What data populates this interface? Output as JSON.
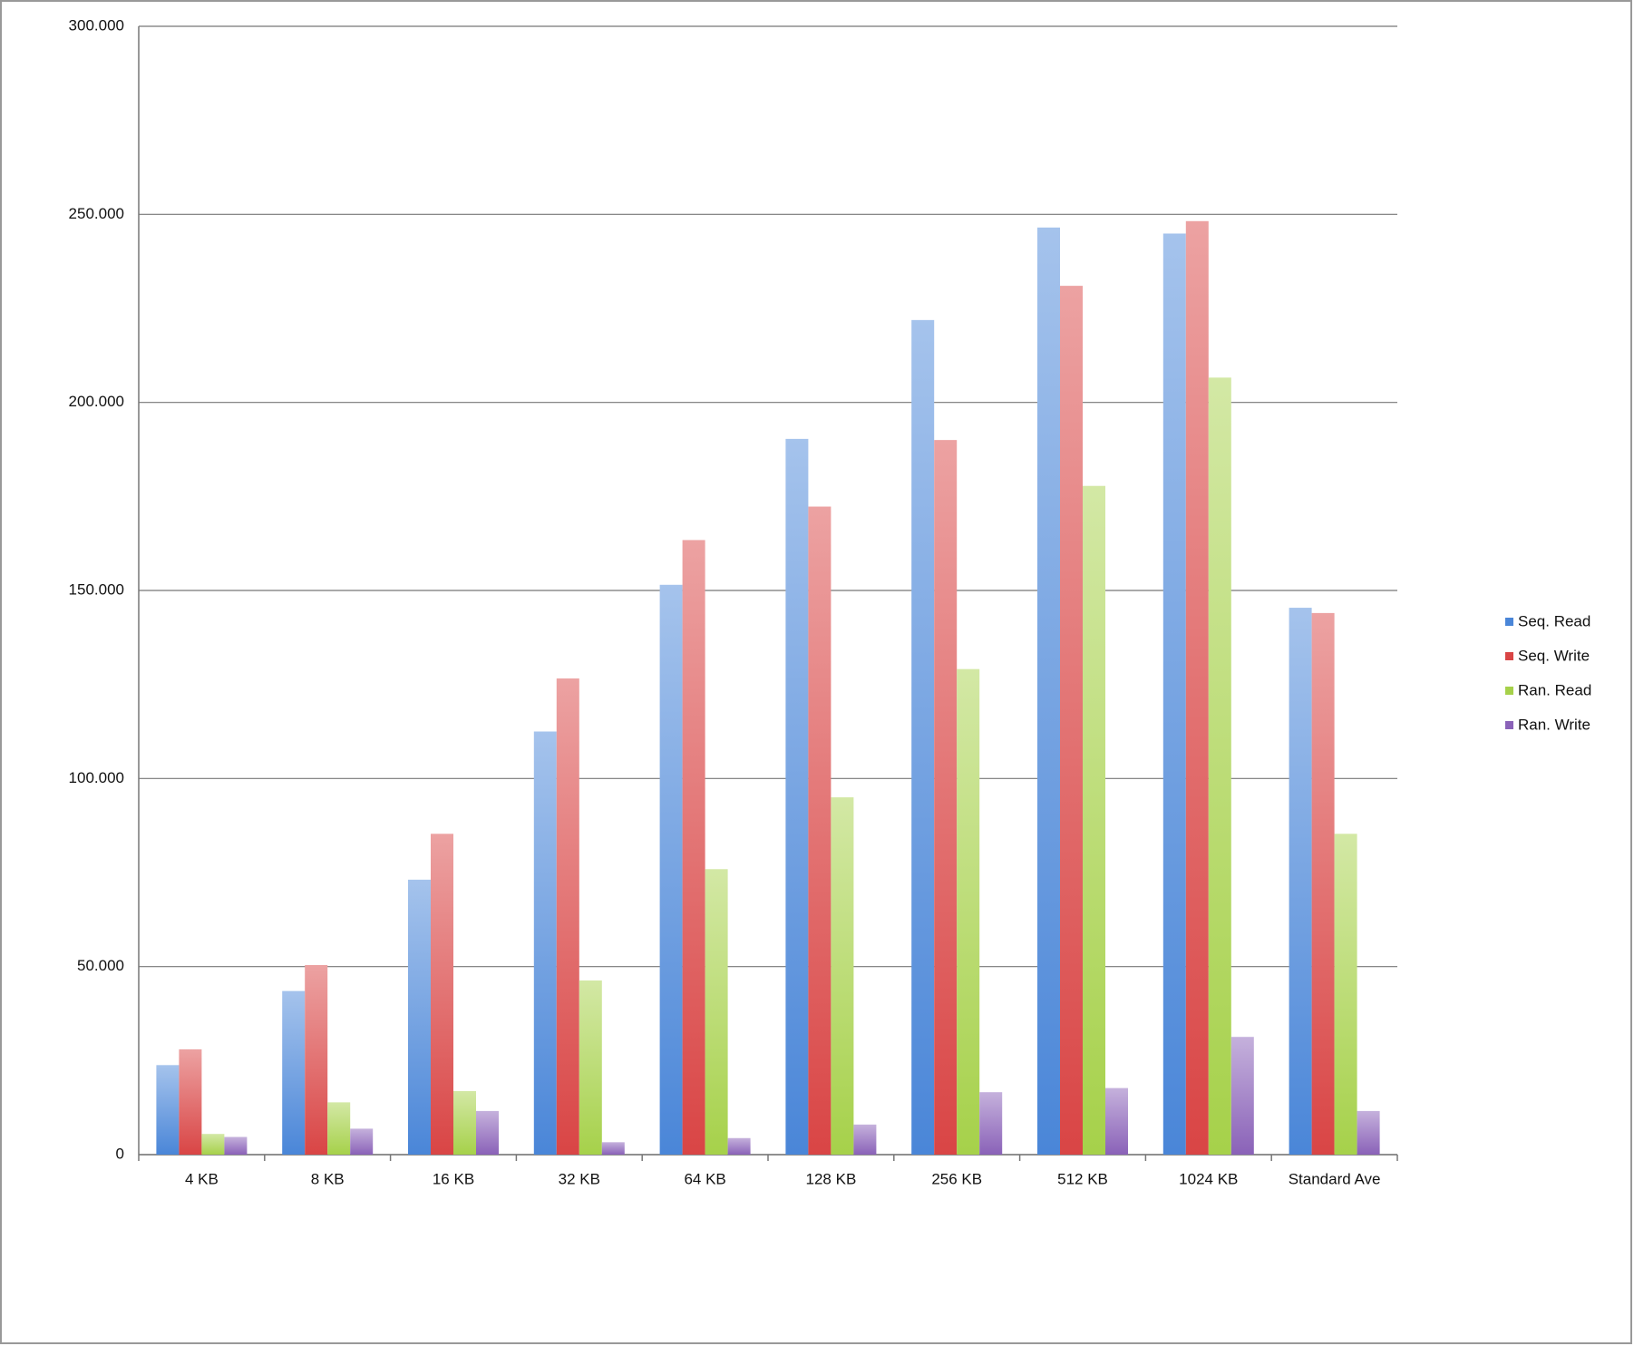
{
  "chart_data": {
    "type": "bar",
    "categories": [
      "4 KB",
      "8 KB",
      "16 KB",
      "32 KB",
      "64 KB",
      "128 KB",
      "256 KB",
      "512 KB",
      "1024 KB",
      "Standard Ave"
    ],
    "series": [
      {
        "name": "Seq. Read",
        "color": "#4a86d8",
        "values": [
          23.8,
          43.5,
          73.1,
          112.5,
          151.5,
          190.3,
          221.9,
          246.5,
          244.9,
          145.4
        ]
      },
      {
        "name": "Seq. Write",
        "color": "#d94545",
        "values": [
          28,
          50.4,
          85.3,
          126.6,
          163.4,
          172.3,
          190,
          231,
          248.2,
          144
        ]
      },
      {
        "name": "Ran. Read",
        "color": "#a6d14a",
        "values": [
          5.5,
          13.9,
          16.9,
          46.3,
          75.9,
          95,
          129.1,
          177.8,
          206.6,
          85.3
        ]
      },
      {
        "name": "Ran. Write",
        "color": "#8a62b8",
        "values": [
          4.7,
          6.9,
          11.6,
          3.3,
          4.4,
          8,
          16.6,
          17.7,
          31.3,
          11.6
        ]
      }
    ],
    "ylim": [
      0,
      300
    ],
    "yticks": [
      0,
      {
        "value": 50,
        "label": "50.000"
      },
      {
        "value": 100,
        "label": "100.000"
      },
      {
        "value": 150,
        "label": "150.000"
      },
      {
        "value": 200,
        "label": "200.000"
      },
      {
        "value": 250,
        "label": "250.000"
      },
      {
        "value": 300,
        "label": "300.000"
      }
    ],
    "grid": true,
    "legend": "right"
  }
}
